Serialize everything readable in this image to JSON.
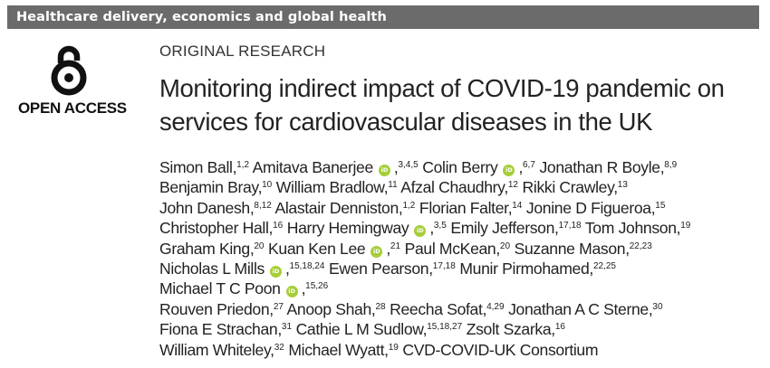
{
  "section_bar": "Healthcare delivery, economics and global health",
  "open_access": {
    "label": "OPEN ACCESS",
    "icon": "open-access-lock-icon"
  },
  "article_type": "ORIGINAL RESEARCH",
  "title": "Monitoring indirect impact of COVID-19 pandemic on services for cardiovascular diseases in the UK",
  "orcid_icon_text": "iD",
  "authors": [
    {
      "name": "Simon Ball",
      "aff": "1,2",
      "orcid": false
    },
    {
      "name": "Amitava Banerjee",
      "aff": "3,4,5",
      "orcid": true
    },
    {
      "name": "Colin Berry",
      "aff": "6,7",
      "orcid": true
    },
    {
      "name": "Jonathan R Boyle",
      "aff": "8,9",
      "orcid": false
    },
    {
      "name": "Benjamin Bray",
      "aff": "10",
      "orcid": false
    },
    {
      "name": "William Bradlow",
      "aff": "11",
      "orcid": false
    },
    {
      "name": "Afzal Chaudhry",
      "aff": "12",
      "orcid": false
    },
    {
      "name": "Rikki Crawley",
      "aff": "13",
      "orcid": false
    },
    {
      "name": "John Danesh",
      "aff": "8,12",
      "orcid": false
    },
    {
      "name": "Alastair Denniston",
      "aff": "1,2",
      "orcid": false
    },
    {
      "name": "Florian Falter",
      "aff": "14",
      "orcid": false
    },
    {
      "name": "Jonine D Figueroa",
      "aff": "15",
      "orcid": false
    },
    {
      "name": "Christopher Hall",
      "aff": "16",
      "orcid": false
    },
    {
      "name": "Harry Hemingway",
      "aff": "3,5",
      "orcid": true
    },
    {
      "name": "Emily Jefferson",
      "aff": "17,18",
      "orcid": false
    },
    {
      "name": "Tom Johnson",
      "aff": "19",
      "orcid": false
    },
    {
      "name": "Graham King",
      "aff": "20",
      "orcid": false
    },
    {
      "name": "Kuan Ken Lee",
      "aff": "21",
      "orcid": true
    },
    {
      "name": "Paul McKean",
      "aff": "20",
      "orcid": false
    },
    {
      "name": "Suzanne Mason",
      "aff": "22,23",
      "orcid": false
    },
    {
      "name": "Nicholas L Mills",
      "aff": "15,18,24",
      "orcid": true
    },
    {
      "name": "Ewen Pearson",
      "aff": "17,18",
      "orcid": false
    },
    {
      "name": "Munir Pirmohamed",
      "aff": "22,25",
      "orcid": false
    },
    {
      "name": "Michael T C Poon",
      "aff": "15,26",
      "orcid": true
    },
    {
      "name": "Rouven Priedon",
      "aff": "27",
      "orcid": false
    },
    {
      "name": "Anoop Shah",
      "aff": "28",
      "orcid": false
    },
    {
      "name": "Reecha Sofat",
      "aff": "4,29",
      "orcid": false
    },
    {
      "name": "Jonathan A C Sterne",
      "aff": "30",
      "orcid": false
    },
    {
      "name": "Fiona E Strachan",
      "aff": "31",
      "orcid": false
    },
    {
      "name": "Cathie L M Sudlow",
      "aff": "15,18,27",
      "orcid": false
    },
    {
      "name": "Zsolt Szarka",
      "aff": "16",
      "orcid": false
    },
    {
      "name": "William Whiteley",
      "aff": "32",
      "orcid": false
    },
    {
      "name": "Michael Wyatt",
      "aff": "19",
      "orcid": false
    },
    {
      "name": "CVD-COVID-UK Consortium",
      "aff": "",
      "orcid": false
    }
  ],
  "line_breaks_after": [
    3,
    7,
    11,
    15,
    19,
    23,
    27,
    30
  ],
  "colors": {
    "section_bar": "#6b6b6b",
    "orcid": "#a6ce39"
  }
}
